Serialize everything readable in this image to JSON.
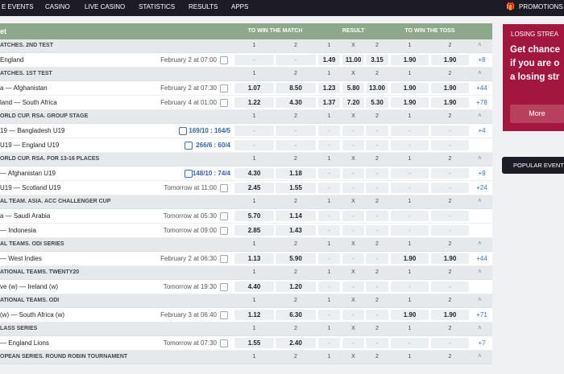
{
  "nav": {
    "items": [
      "E EVENTS",
      "CASINO",
      "LIVE CASINO",
      "STATISTICS",
      "RESULTS",
      "APPS"
    ],
    "promotions": "PROMOTIONS"
  },
  "table": {
    "title": "et",
    "groups": [
      "TO WIN THE MATCH",
      "RESULT",
      "TO WIN THE TOSS"
    ],
    "outcomes": [
      "1",
      "2",
      "1",
      "X",
      "2",
      "1",
      "2"
    ],
    "sections": [
      {
        "league": "ATCHES. 2ND TEST",
        "matches": [
          {
            "name": "England",
            "time": "February 2 at 07:00",
            "odds": [
              "-",
              "-",
              "1.49",
              "11.00",
              "3.15",
              "1.90",
              "1.90"
            ],
            "more": "+8"
          }
        ]
      },
      {
        "league": "ATCHES. 1ST TEST",
        "matches": [
          {
            "name": "a — Afghanistan",
            "time": "February 2 at 07:30",
            "odds": [
              "1.07",
              "8.50",
              "1.23",
              "5.80",
              "13.00",
              "1.90",
              "1.90"
            ],
            "more": "+44"
          },
          {
            "name": "land — South Africa",
            "time": "February 4 at 01:00",
            "odds": [
              "1.22",
              "4.30",
              "1.37",
              "7.20",
              "5.30",
              "1.90",
              "1.90"
            ],
            "more": "+78"
          }
        ]
      },
      {
        "league": "ORLD CUP. RSA. GROUP STAGE",
        "matches": [
          {
            "name": "19 — Bangladesh U19",
            "score": "169/10 : 164/5",
            "odds": [
              "-",
              "-",
              "-",
              "-",
              "-",
              "-",
              "-"
            ],
            "more": "+4"
          },
          {
            "name": "U19 — England U19",
            "score": "266/6 : 60/4",
            "odds": [
              "-",
              "-",
              "-",
              "-",
              "-",
              "-",
              "-"
            ]
          }
        ]
      },
      {
        "league": "ORLD CUP. RSA. FOR 13-16 PLACES",
        "matches": [
          {
            "name": "— Afghanistan U19",
            "score": "148/10 : 74/4",
            "odds": [
              "4.30",
              "1.18",
              "-",
              "-",
              "-",
              "-",
              "-"
            ],
            "more": "+9"
          },
          {
            "name": "U19 — Scotland U19",
            "time": "Tomorrow at 11:00",
            "odds": [
              "2.45",
              "1.55",
              "-",
              "-",
              "-",
              "-",
              "-"
            ],
            "more": "+24"
          }
        ]
      },
      {
        "league": "AL TEAM. ASIA. ACC CHALLENGER CUP",
        "matches": [
          {
            "name": "a — Saudi Arabia",
            "time": "Tomorrow at 05:30",
            "odds": [
              "5.70",
              "1.14",
              "-",
              "-",
              "-",
              "-",
              "-"
            ]
          },
          {
            "name": "— Indonesia",
            "time": "Tomorrow at 09:00",
            "odds": [
              "2.85",
              "1.43",
              "-",
              "-",
              "-",
              "-",
              "-"
            ]
          }
        ]
      },
      {
        "league": "AL TEAMS. ODI SERIES",
        "matches": [
          {
            "name": "— West Indies",
            "time": "February 2 at 06:30",
            "odds": [
              "1.13",
              "5.90",
              "-",
              "-",
              "-",
              "1.90",
              "1.90"
            ],
            "more": "+44"
          }
        ]
      },
      {
        "league": "ATIONAL TEAMS. TWENTY20",
        "matches": [
          {
            "name": "ve (w) — Ireland (w)",
            "time": "Tomorrow at 19:30",
            "odds": [
              "4.40",
              "1.20",
              "-",
              "-",
              "-",
              "-",
              "-"
            ]
          }
        ]
      },
      {
        "league": "ATIONAL TEAMS. ODI",
        "matches": [
          {
            "name": "(w) — South Africa (w)",
            "time": "February 3 at 06:40",
            "odds": [
              "1.12",
              "6.30",
              "-",
              "-",
              "-",
              "1.90",
              "1.90"
            ],
            "more": "+71"
          }
        ]
      },
      {
        "league": "LASS SERIES",
        "matches": [
          {
            "name": "— England Lions",
            "time": "Tomorrow at 07:30",
            "odds": [
              "1.55",
              "2.40",
              "-",
              "-",
              "-",
              "-",
              "-"
            ],
            "more": "+7"
          }
        ]
      },
      {
        "league": "OPEAN SERIES. ROUND ROBIN TOURNAMENT",
        "matches": []
      }
    ]
  },
  "sidebar": {
    "promo_title": "LOSING STREA",
    "promo_lines": [
      "Get chance",
      "if you are o",
      "a losing str"
    ],
    "more_button": "More",
    "popular": "POPULAR EVENT"
  }
}
